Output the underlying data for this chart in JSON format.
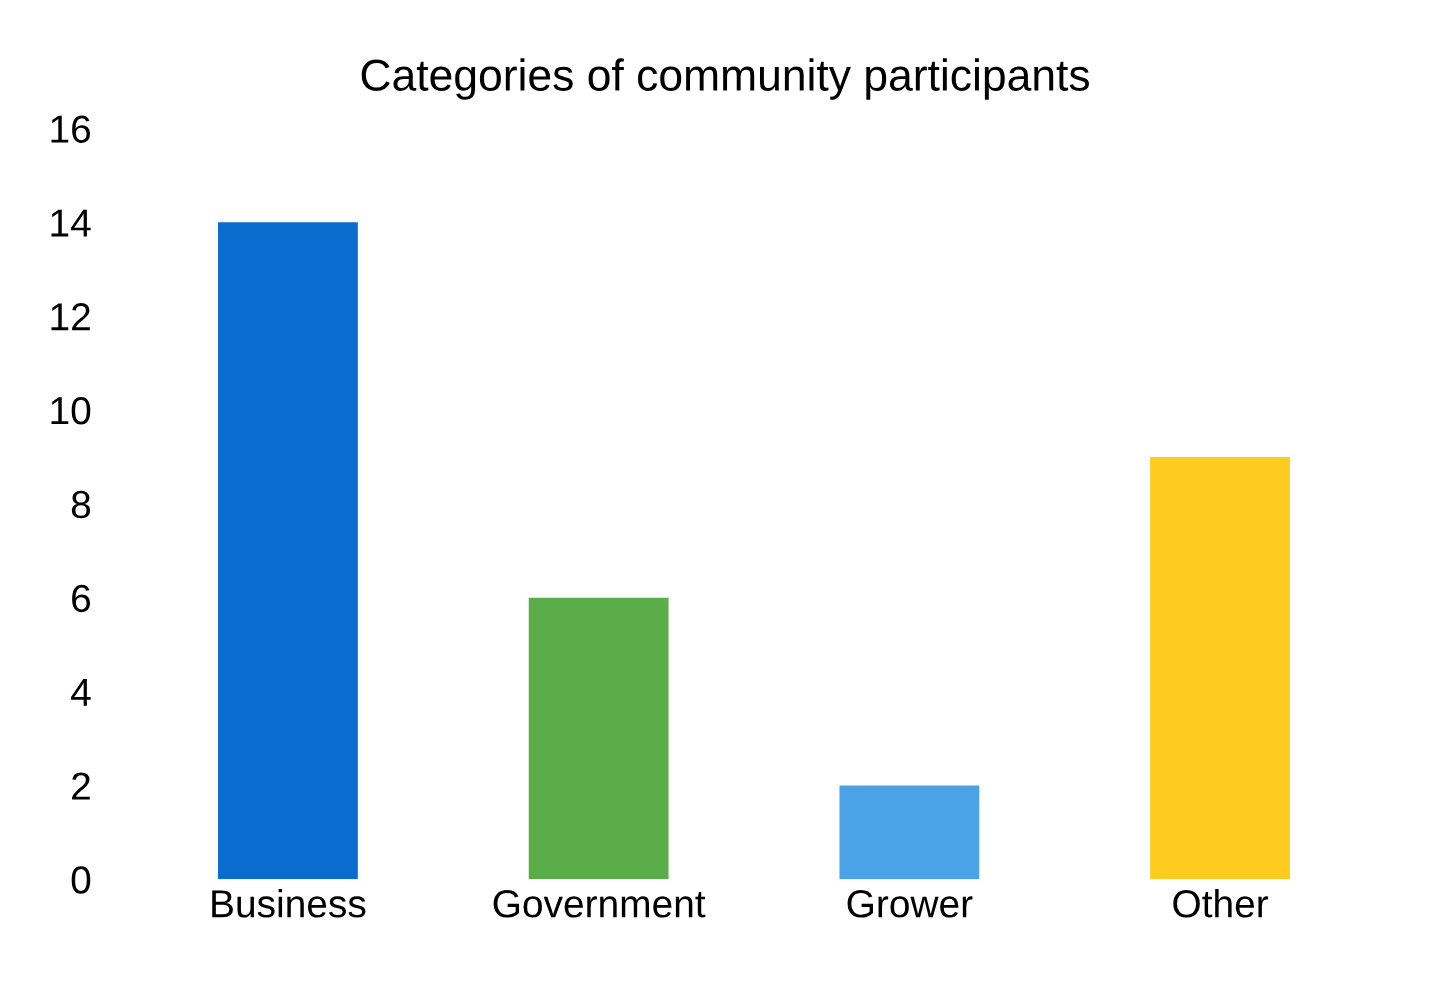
{
  "chart_data": {
    "type": "bar",
    "title": "Categories of community participants",
    "categories": [
      "Business",
      "Government",
      "Grower",
      "Other"
    ],
    "values": [
      14,
      6,
      2,
      9
    ],
    "colors": [
      "#0a6ccf",
      "#5aad48",
      "#4aa3e6",
      "#fecb1f"
    ],
    "ylim": [
      0,
      16
    ],
    "yticks": [
      0,
      2,
      4,
      6,
      8,
      10,
      12,
      14,
      16
    ],
    "grid": false
  }
}
